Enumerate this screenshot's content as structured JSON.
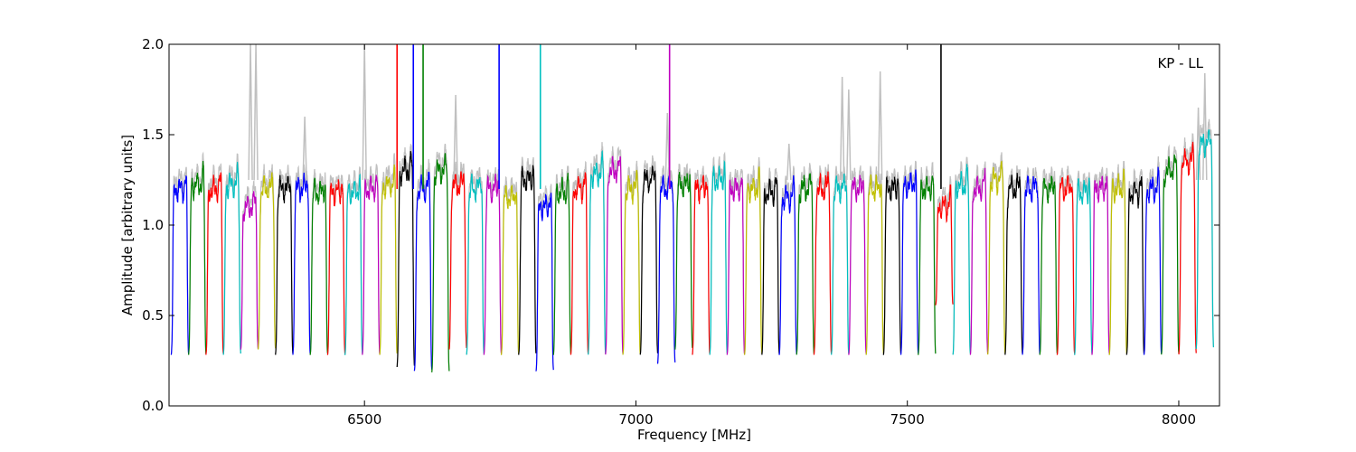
{
  "chart_data": {
    "type": "line",
    "title": "",
    "xlabel": "Frequency [MHz]",
    "ylabel": "Amplitude [arbitrary units]",
    "annotation": "KP - LL",
    "xlim": [
      6140,
      8075
    ],
    "ylim": [
      0.0,
      2.0
    ],
    "x_ticks": [
      6500,
      7000,
      7500,
      8000
    ],
    "x_tick_labels": [
      "6500",
      "7000",
      "7500",
      "8000"
    ],
    "y_ticks": [
      0.0,
      0.5,
      1.0,
      1.5,
      2.0
    ],
    "y_tick_labels": [
      "0.0",
      "0.5",
      "1.0",
      "1.5",
      "2.0"
    ],
    "grid": false,
    "legend": "none",
    "background_trace_color": "#c0c0c0",
    "channel_width_mhz": 32,
    "color_cycle": [
      "#0000ff",
      "#008000",
      "#ff0000",
      "#00bfbf",
      "#bf00bf",
      "#bfbf00",
      "#000000"
    ],
    "channel_start_mhz": [
      6144,
      6176,
      6208,
      6240,
      6272,
      6304,
      6336,
      6368,
      6400,
      6432,
      6464,
      6496,
      6528,
      6560,
      6592,
      6624,
      6656,
      6688,
      6720,
      6752,
      6784,
      6816,
      6848,
      6880,
      6912,
      6944,
      6976,
      7008,
      7040,
      7072,
      7104,
      7136,
      7168,
      7200,
      7232,
      7264,
      7296,
      7328,
      7360,
      7392,
      7424,
      7456,
      7488,
      7520,
      7552,
      7584,
      7616,
      7648,
      7680,
      7712,
      7744,
      7776,
      7808,
      7840,
      7872,
      7904,
      7936,
      7968,
      8000,
      8032
    ],
    "channel_plateau_level": [
      1.2,
      1.22,
      1.2,
      1.22,
      1.1,
      1.2,
      1.2,
      1.2,
      1.18,
      1.18,
      1.18,
      1.2,
      1.22,
      1.3,
      1.2,
      1.3,
      1.22,
      1.2,
      1.2,
      1.15,
      1.25,
      1.1,
      1.18,
      1.2,
      1.28,
      1.3,
      1.2,
      1.25,
      1.2,
      1.22,
      1.2,
      1.25,
      1.2,
      1.2,
      1.18,
      1.15,
      1.2,
      1.2,
      1.2,
      1.2,
      1.2,
      1.2,
      1.22,
      1.2,
      1.1,
      1.22,
      1.2,
      1.25,
      1.2,
      1.2,
      1.2,
      1.2,
      1.18,
      1.2,
      1.2,
      1.18,
      1.2,
      1.3,
      1.35,
      1.45
    ],
    "channel_floor_level": [
      0.27,
      0.27,
      0.27,
      0.27,
      0.3,
      0.3,
      0.27,
      0.27,
      0.27,
      0.27,
      0.27,
      0.27,
      0.27,
      0.2,
      0.18,
      0.17,
      0.3,
      0.27,
      0.27,
      0.27,
      0.27,
      0.18,
      0.27,
      0.27,
      0.27,
      0.27,
      0.27,
      0.27,
      0.22,
      0.3,
      0.27,
      0.27,
      0.27,
      0.27,
      0.27,
      0.27,
      0.27,
      0.27,
      0.27,
      0.27,
      0.27,
      0.27,
      0.27,
      0.27,
      0.55,
      0.27,
      0.27,
      0.27,
      0.27,
      0.27,
      0.27,
      0.27,
      0.27,
      0.27,
      0.27,
      0.27,
      0.27,
      0.27,
      0.27,
      0.3
    ],
    "rfi_spikes": [
      {
        "x": 6560,
        "y": 2.0,
        "color": "#ff0000"
      },
      {
        "x": 6590,
        "y": 2.0,
        "color": "#0000ff"
      },
      {
        "x": 6608,
        "y": 2.0,
        "color": "#008000"
      },
      {
        "x": 6748,
        "y": 2.0,
        "color": "#0000ff"
      },
      {
        "x": 6824,
        "y": 2.0,
        "color": "#00bfbf"
      },
      {
        "x": 7062,
        "y": 2.0,
        "color": "#bf00bf"
      },
      {
        "x": 7562,
        "y": 2.0,
        "color": "#000000"
      }
    ],
    "background_peaks": [
      {
        "x": 6290,
        "y": 2.0
      },
      {
        "x": 6300,
        "y": 2.0
      },
      {
        "x": 6390,
        "y": 1.6
      },
      {
        "x": 6500,
        "y": 2.0
      },
      {
        "x": 6668,
        "y": 1.72
      },
      {
        "x": 7058,
        "y": 1.62
      },
      {
        "x": 7282,
        "y": 1.45
      },
      {
        "x": 7380,
        "y": 1.82
      },
      {
        "x": 7392,
        "y": 1.75
      },
      {
        "x": 7450,
        "y": 1.85
      },
      {
        "x": 8036,
        "y": 1.65
      },
      {
        "x": 8048,
        "y": 1.84
      }
    ]
  }
}
